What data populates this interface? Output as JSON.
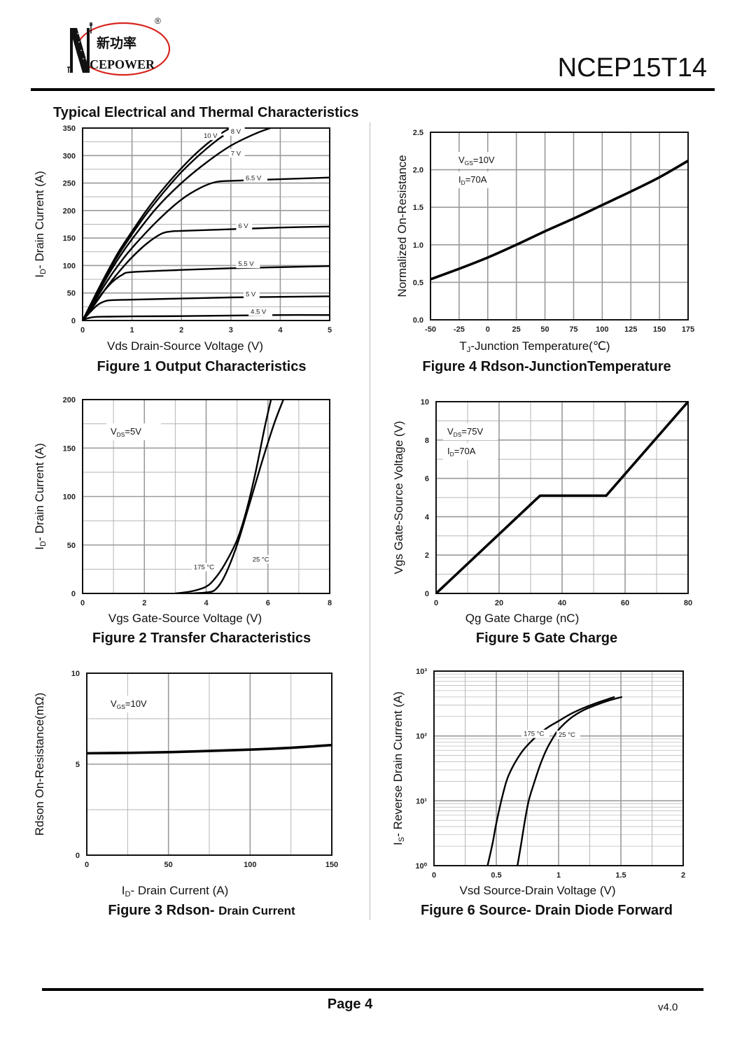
{
  "header": {
    "logo": {
      "brand_cn": "新功率",
      "brand_en": "CEPOWER",
      "initial": "N",
      "registered": "®"
    },
    "part_number": "NCEP15T14",
    "section_title": "Typical Electrical and Thermal Characteristics"
  },
  "footer": {
    "page_label": "Page 4",
    "version": "v4.0"
  },
  "colors": {
    "logo_ring": "#d8261f",
    "curve": "#000000",
    "grid": "#9a9a9a",
    "text": "#111111"
  },
  "chart_data": [
    {
      "id": "fig1",
      "type": "line",
      "title": "Figure 1 Output Characteristics",
      "xlabel": "Vds Drain-Source Voltage (V)",
      "ylabel_main": "I",
      "ylabel_sub": "D",
      "ylabel_rest": "- Drain Current (A)",
      "xlim": [
        0,
        5
      ],
      "ylim": [
        0,
        350
      ],
      "xticks": [
        0,
        1,
        2,
        3,
        4,
        5
      ],
      "yticks": [
        0,
        50,
        100,
        150,
        200,
        250,
        300,
        350
      ],
      "grid": true,
      "minor_y": 25,
      "series": [
        {
          "name": "10 V",
          "label_at": [
            2.45,
            332
          ],
          "x": [
            0,
            0.25,
            0.5,
            0.75,
            1,
            1.25,
            1.5,
            1.75,
            2,
            2.25,
            2.5,
            2.75,
            3,
            3.2
          ],
          "y": [
            0,
            45,
            88,
            128,
            162,
            195,
            225,
            252,
            277,
            300,
            320,
            337,
            350,
            355
          ]
        },
        {
          "name": "8 V",
          "label_at": [
            3.0,
            340
          ],
          "x": [
            0,
            0.25,
            0.5,
            0.75,
            1,
            1.25,
            1.5,
            1.75,
            2,
            2.25,
            2.5,
            2.75,
            2.85
          ],
          "y": [
            0,
            43,
            85,
            123,
            157,
            189,
            218,
            245,
            270,
            292,
            312,
            330,
            336
          ]
        },
        {
          "name": "7 V",
          "label_at": [
            3.0,
            300
          ],
          "x": [
            0,
            0.25,
            0.5,
            0.75,
            1,
            1.5,
            2,
            2.5,
            3,
            3.5,
            3.8
          ],
          "y": [
            0,
            40,
            80,
            116,
            148,
            205,
            250,
            287,
            318,
            340,
            350
          ]
        },
        {
          "name": "6.5 V",
          "label_at": [
            3.3,
            255
          ],
          "x": [
            0,
            0.25,
            0.5,
            0.75,
            1,
            1.5,
            2,
            2.4,
            2.7,
            3,
            4,
            5
          ],
          "y": [
            0,
            36,
            72,
            104,
            132,
            180,
            220,
            242,
            252,
            254,
            257,
            260
          ]
        },
        {
          "name": "6 V",
          "label_at": [
            3.15,
            168
          ],
          "x": [
            0,
            0.25,
            0.5,
            0.75,
            1,
            1.3,
            1.6,
            1.8,
            2,
            3,
            4,
            5
          ],
          "y": [
            0,
            30,
            62,
            90,
            115,
            140,
            158,
            162,
            163,
            166,
            169,
            171
          ]
        },
        {
          "name": "5.5 V",
          "label_at": [
            3.15,
            99
          ],
          "x": [
            0,
            0.2,
            0.4,
            0.6,
            0.8,
            1,
            2,
            3,
            4,
            5
          ],
          "y": [
            0,
            25,
            50,
            70,
            83,
            88,
            92,
            95,
            97,
            99
          ]
        },
        {
          "name": "5 V",
          "label_at": [
            3.3,
            44
          ],
          "x": [
            0,
            0.15,
            0.3,
            0.45,
            0.6,
            1,
            2,
            3,
            4,
            5
          ],
          "y": [
            0,
            15,
            28,
            35,
            37,
            38,
            40,
            42,
            43,
            44
          ]
        },
        {
          "name": "4.5 V",
          "label_at": [
            3.4,
            12
          ],
          "x": [
            0,
            0.1,
            0.25,
            0.5,
            1,
            2,
            3,
            4,
            5
          ],
          "y": [
            0,
            4,
            6.5,
            7,
            7.5,
            8,
            9,
            10,
            10
          ]
        }
      ]
    },
    {
      "id": "fig4",
      "type": "line",
      "title": "Figure 4 Rdson-JunctionTemperature",
      "xlabel_main": "T",
      "xlabel_sub": "J",
      "xlabel_rest": "-Junction Temperature(℃)",
      "ylabel": "Normalized On-Resistance",
      "xlim": [
        -50,
        175
      ],
      "ylim": [
        0,
        2.5
      ],
      "xticks": [
        -50,
        -25,
        0,
        25,
        50,
        75,
        100,
        125,
        150,
        175
      ],
      "yticks": [
        0.0,
        0.5,
        1.0,
        1.5,
        2.0,
        2.5
      ],
      "ytick_labels": [
        "0.0",
        "0.5",
        "1.0",
        "1.5",
        "2.0",
        "2.5"
      ],
      "grid": true,
      "annotations": [
        {
          "main": "V",
          "sub": "GS",
          "rest": "=10V"
        },
        {
          "main": "I",
          "sub": "D",
          "rest": "=70A"
        }
      ],
      "series": [
        {
          "name": "Rdson",
          "x": [
            -50,
            -25,
            0,
            25,
            50,
            75,
            100,
            125,
            150,
            175
          ],
          "y": [
            0.54,
            0.68,
            0.83,
            1.0,
            1.18,
            1.35,
            1.53,
            1.71,
            1.9,
            2.12
          ]
        }
      ]
    },
    {
      "id": "fig2",
      "type": "line",
      "title": "Figure 2 Transfer Characteristics",
      "xlabel": "Vgs Gate-Source Voltage (V)",
      "ylabel_main": "I",
      "ylabel_sub": "D",
      "ylabel_rest": "- Drain Current (A)",
      "xlim": [
        0,
        8
      ],
      "ylim": [
        0,
        200
      ],
      "xticks": [
        0,
        2,
        4,
        6,
        8
      ],
      "yticks": [
        0,
        50,
        100,
        150,
        200
      ],
      "grid": true,
      "minor_x": 1,
      "minor_y": 25,
      "annotations": [
        {
          "main": "V",
          "sub": "DS",
          "rest": "=5V"
        }
      ],
      "series": [
        {
          "name": "175 °C",
          "label_at": [
            3.6,
            25
          ],
          "x": [
            3.0,
            3.5,
            4.0,
            4.3,
            4.6,
            5.0,
            5.3,
            5.6,
            5.9,
            6.1
          ],
          "y": [
            0,
            2,
            7,
            16,
            30,
            55,
            85,
            125,
            172,
            200
          ]
        },
        {
          "name": "25 °C",
          "label_at": [
            5.5,
            33
          ],
          "x": [
            3.5,
            4.0,
            4.3,
            4.6,
            5.0,
            5.4,
            5.8,
            6.2,
            6.5
          ],
          "y": [
            0,
            1,
            4,
            18,
            50,
            92,
            135,
            175,
            200
          ]
        }
      ]
    },
    {
      "id": "fig5",
      "type": "line",
      "title": "Figure 5 Gate Charge",
      "xlabel": "Qg Gate Charge (nC)",
      "ylabel": "Vgs Gate-Source Voltage (V)",
      "xlim": [
        0,
        80
      ],
      "ylim": [
        0,
        10
      ],
      "xticks": [
        0,
        20,
        40,
        60,
        80
      ],
      "yticks": [
        0,
        2,
        4,
        6,
        8,
        10
      ],
      "grid": true,
      "minor_x": 10,
      "minor_y": 1,
      "annotations": [
        {
          "main": "V",
          "sub": "DS",
          "rest": "=75V"
        },
        {
          "main": "I",
          "sub": "D",
          "rest": "=70A"
        }
      ],
      "series": [
        {
          "name": "Vgs",
          "x": [
            0,
            33,
            54,
            80
          ],
          "y": [
            0,
            5.1,
            5.1,
            10
          ]
        }
      ]
    },
    {
      "id": "fig3",
      "type": "line",
      "title": "Figure 3 Rdson- ",
      "title_small": "Drain Current",
      "xlabel_main": "I",
      "xlabel_sub": "D",
      "xlabel_rest": "- Drain Current (A)",
      "ylabel": "Rdson On-Resistance(mΩ)",
      "xlim": [
        0,
        150
      ],
      "ylim": [
        0,
        10
      ],
      "xticks": [
        0,
        50,
        100,
        150
      ],
      "yticks": [
        0,
        5,
        10
      ],
      "grid": true,
      "minor_x": 25,
      "minor_y": 2.5,
      "annotations": [
        {
          "main": "V",
          "sub": "GS",
          "rest": "=10V"
        }
      ],
      "series": [
        {
          "name": "Rdson",
          "x": [
            0,
            25,
            50,
            75,
            100,
            125,
            150
          ],
          "y": [
            5.6,
            5.62,
            5.66,
            5.73,
            5.8,
            5.9,
            6.05
          ]
        }
      ]
    },
    {
      "id": "fig6",
      "type": "line",
      "title": "Figure 6 Source- Drain Diode Forward",
      "xlabel": "Vsd Source-Drain Voltage (V)",
      "ylabel_main": "I",
      "ylabel_sub": "S",
      "ylabel_rest": "- Reverse Drain Current (A)",
      "xlim": [
        0,
        2
      ],
      "ylim": [
        1,
        1000
      ],
      "yscale": "log",
      "xticks": [
        0,
        0.5,
        1,
        1.5,
        2
      ],
      "xtick_labels": [
        "0",
        "0.5",
        "1",
        "1.5",
        "2"
      ],
      "yticks": [
        1,
        10,
        100,
        1000
      ],
      "ytick_labels": [
        "10⁰",
        "10¹",
        "10²",
        "10³"
      ],
      "grid": true,
      "minor_x": 0.25,
      "series": [
        {
          "name": "175 °C",
          "label_at": [
            0.72,
            100
          ],
          "x": [
            0.43,
            0.47,
            0.5,
            0.55,
            0.6,
            0.7,
            0.8,
            0.9,
            1.0,
            1.1,
            1.2,
            1.3,
            1.45
          ],
          "y": [
            1,
            2.2,
            4.5,
            12,
            25,
            55,
            90,
            130,
            170,
            220,
            270,
            320,
            400
          ]
        },
        {
          "name": "25 °C",
          "label_at": [
            1.0,
            97
          ],
          "x": [
            0.67,
            0.7,
            0.73,
            0.76,
            0.8,
            0.85,
            0.9,
            0.95,
            1.0,
            1.1,
            1.2,
            1.3,
            1.4,
            1.51
          ],
          "y": [
            1,
            2.2,
            5,
            10,
            18,
            35,
            60,
            90,
            125,
            190,
            250,
            300,
            350,
            400
          ]
        }
      ]
    }
  ]
}
